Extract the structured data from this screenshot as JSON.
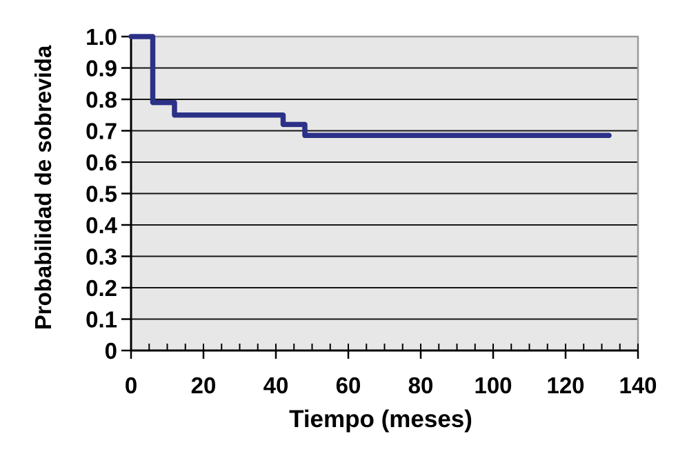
{
  "chart_data": {
    "type": "line",
    "variant": "kaplan-meier-step-curve",
    "title": "",
    "xlabel": "Tiempo (meses)",
    "ylabel": "Probabilidad de sobrevida",
    "xlim": [
      0,
      140
    ],
    "ylim": [
      0,
      1.0
    ],
    "x_ticks": [
      0,
      20,
      40,
      60,
      80,
      100,
      120,
      140
    ],
    "x_tick_labels": [
      "0",
      "20",
      "40",
      "60",
      "80",
      "100",
      "120",
      "140"
    ],
    "x_minor_tick_step": 5,
    "y_ticks": [
      0,
      0.1,
      0.2,
      0.3,
      0.4,
      0.5,
      0.6,
      0.7,
      0.8,
      0.9,
      1.0
    ],
    "y_tick_labels": [
      "0",
      "0.1",
      "0.2",
      "0.3",
      "0.4",
      "0.5",
      "0.6",
      "0.7",
      "0.8",
      "0.9",
      "1.0"
    ],
    "grid": "horizontal-only",
    "legend": "none",
    "series": [
      {
        "name": "Probabilidad de sobrevida",
        "draw_style": "step",
        "color": "#2b3187",
        "line_width": 7.5,
        "points": [
          [
            0,
            1.0
          ],
          [
            6,
            1.0
          ],
          [
            6,
            0.79
          ],
          [
            12,
            0.79
          ],
          [
            12,
            0.75
          ],
          [
            42,
            0.75
          ],
          [
            42,
            0.72
          ],
          [
            48,
            0.72
          ],
          [
            48,
            0.685
          ],
          [
            132,
            0.685
          ]
        ]
      }
    ],
    "colors": {
      "page_background": "#ffffff",
      "plot_background": "#e7e7e7",
      "gridline": "#141414",
      "axis": "#000000",
      "border_top_right": "#999999",
      "text": "#000000"
    }
  }
}
